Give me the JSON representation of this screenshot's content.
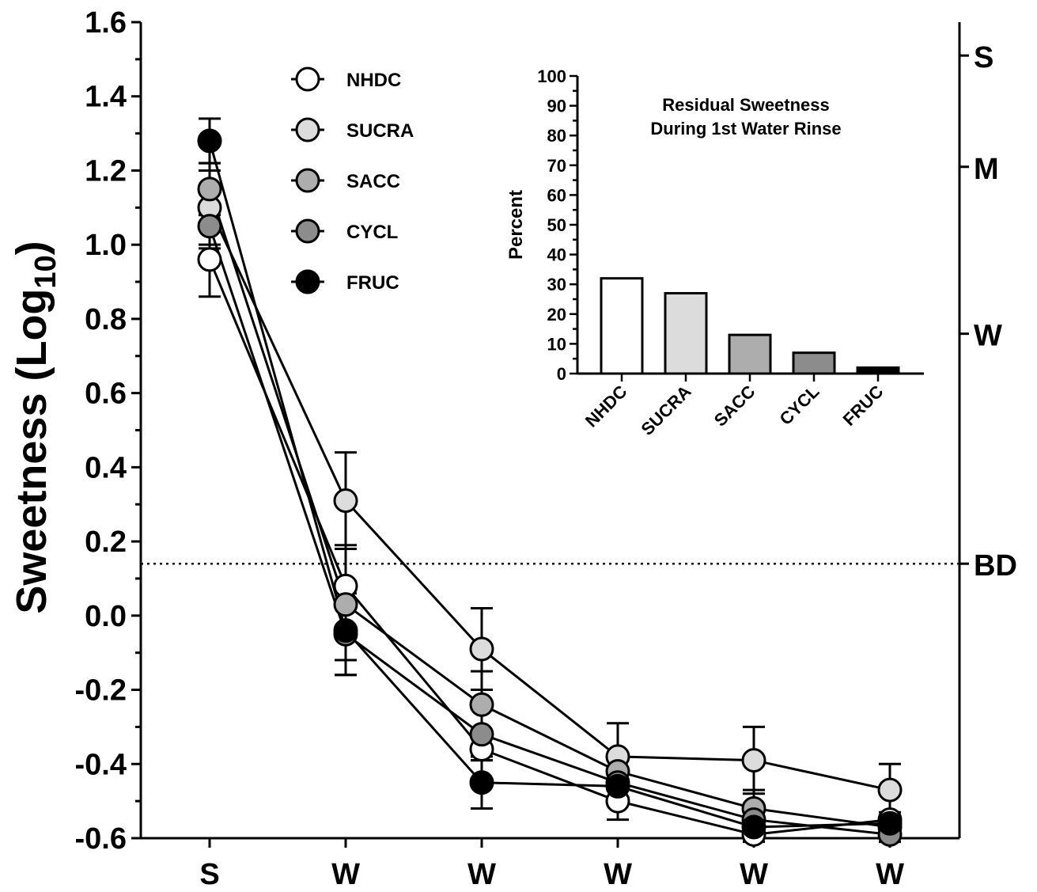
{
  "chart_data": [
    {
      "type": "line",
      "ylabel": "Sweetness (Log",
      "ylabel_sub": "10",
      "ylabel_close": ")",
      "x_categories": [
        "S",
        "W",
        "W",
        "W",
        "W",
        "W"
      ],
      "ylim": [
        -0.6,
        1.6
      ],
      "yticks": [
        "1.6",
        "1.4",
        "1.2",
        "1.0",
        "0.8",
        "0.6",
        "0.4",
        "0.2",
        "0.0",
        "-0.2",
        "-0.4",
        "-0.6"
      ],
      "ytick_values": [
        1.6,
        1.4,
        1.2,
        1.0,
        0.8,
        0.6,
        0.4,
        0.2,
        0.0,
        -0.2,
        -0.4,
        -0.6
      ],
      "right_axis_labels": [
        {
          "label": "S",
          "value": 1.51
        },
        {
          "label": "M",
          "value": 1.21
        },
        {
          "label": "W",
          "value": 0.76
        },
        {
          "label": "BD",
          "value": 0.14
        }
      ],
      "reference_line": {
        "value": 0.14,
        "style": "dotted"
      },
      "legend_placement": "top-center",
      "series": [
        {
          "name": "NHDC",
          "color": "#ffffff",
          "values": [
            0.96,
            0.08,
            -0.36,
            -0.5,
            -0.59,
            -0.55
          ],
          "errors": [
            0.1,
            0.11,
            0.03,
            0.05,
            0.02,
            0.02
          ]
        },
        {
          "name": "SUCRA",
          "color": "#dcdcdc",
          "values": [
            1.1,
            0.31,
            -0.09,
            -0.38,
            -0.39,
            -0.47
          ],
          "errors": [
            0.1,
            0.13,
            0.11,
            0.09,
            0.09,
            0.07
          ]
        },
        {
          "name": "SACC",
          "color": "#adadad",
          "values": [
            1.15,
            0.03,
            -0.24,
            -0.42,
            -0.52,
            -0.57
          ],
          "errors": [
            0.07,
            0.15,
            0.09,
            0.03,
            0.05,
            0.02
          ]
        },
        {
          "name": "CYCL",
          "color": "#8c8c8c",
          "values": [
            1.05,
            -0.05,
            -0.32,
            -0.45,
            -0.55,
            -0.59
          ],
          "errors": [
            0.06,
            0.11,
            0.07,
            0.04,
            0.02,
            0.02
          ]
        },
        {
          "name": "FRUC",
          "color": "#000000",
          "values": [
            1.28,
            -0.04,
            -0.45,
            -0.46,
            -0.57,
            -0.56
          ],
          "errors": [
            0.06,
            0.12,
            0.07,
            0.05,
            0.02,
            0.02
          ]
        }
      ]
    },
    {
      "type": "bar",
      "title": "Residual Sweetness",
      "subtitle": "During 1st Water Rinse",
      "ylabel": "Percent",
      "categories": [
        "NHDC",
        "SUCRA",
        "SACC",
        "CYCL",
        "FRUC"
      ],
      "values": [
        32,
        27,
        13,
        7,
        2
      ],
      "colors": [
        "#ffffff",
        "#dcdcdc",
        "#adadad",
        "#8c8c8c",
        "#000000"
      ],
      "ylim": [
        0,
        100
      ],
      "yticks": [
        "0",
        "10",
        "20",
        "30",
        "40",
        "50",
        "60",
        "70",
        "80",
        "90",
        "100"
      ],
      "ytick_values": [
        0,
        10,
        20,
        30,
        40,
        50,
        60,
        70,
        80,
        90,
        100
      ]
    }
  ]
}
